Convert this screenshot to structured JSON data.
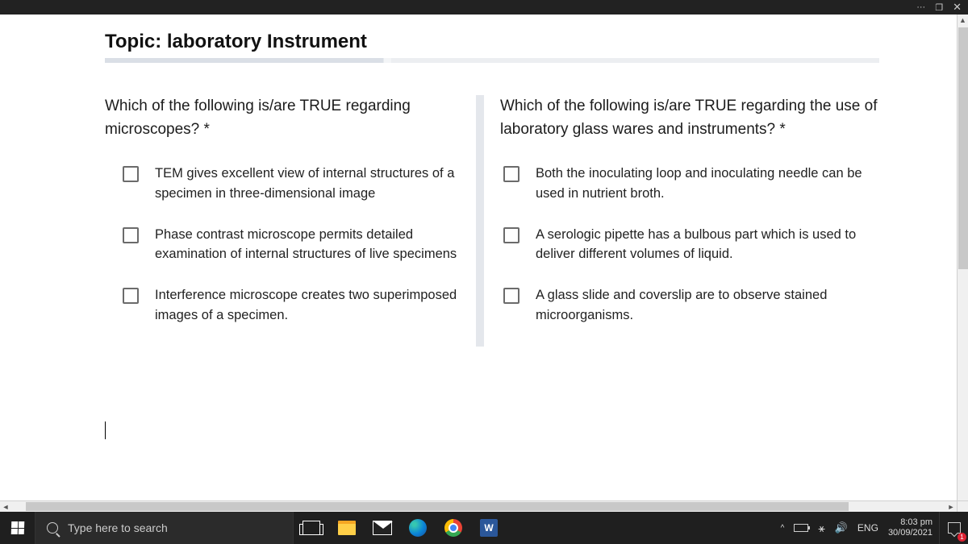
{
  "titlebar": {
    "more": "···",
    "restore": "❐",
    "close": "✕"
  },
  "topic_label": "Topic: laboratory Instrument",
  "questions": [
    {
      "title": "Which of the following is/are TRUE regarding microscopes? *",
      "options": [
        "TEM gives excellent view of internal structures of a specimen in three-dimensional image",
        "Phase contrast microscope permits detailed examination of internal structures of live specimens",
        "Interference microscope creates two superimposed images of a specimen."
      ]
    },
    {
      "title": "Which of the following is/are TRUE regarding the use of laboratory glass wares and instruments? *",
      "options": [
        "Both the inoculating loop and inoculating needle can be used in nutrient broth.",
        "A serologic pipette has a bulbous part which is used to deliver different volumes of liquid.",
        "A glass slide and coverslip are to observe stained microorganisms."
      ]
    }
  ],
  "taskbar": {
    "search_placeholder": "Type here to search",
    "word_letter": "W",
    "lang": "ENG",
    "time": "8:03 pm",
    "date": "30/09/2021",
    "notif_count": "1"
  }
}
